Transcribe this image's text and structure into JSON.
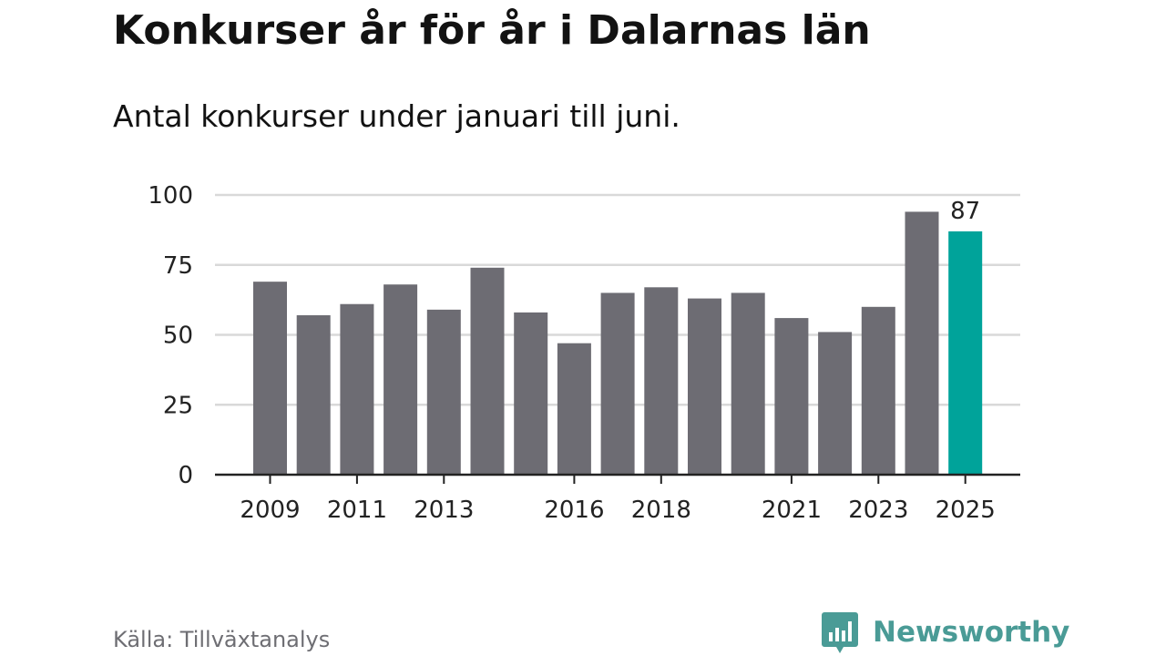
{
  "header": {
    "title": "Konkurser år för år i Dalarnas län",
    "subtitle": "Antal konkurser under januari till juni."
  },
  "footer": {
    "source": "Källa: Tillväxtanalys",
    "brand": "Newsworthy",
    "logo_icon": "bar-chart-speech-bubble-icon"
  },
  "colors": {
    "bar": "#6d6c73",
    "highlight": "#00a39a",
    "grid": "#d9d9d9",
    "axis": "#222222",
    "brand": "#4a9b96"
  },
  "chart_data": {
    "type": "bar",
    "title": "Konkurser år för år i Dalarnas län",
    "subtitle": "Antal konkurser under januari till juni.",
    "xlabel": "",
    "ylabel": "",
    "categories": [
      "2009",
      "2010",
      "2011",
      "2012",
      "2013",
      "2014",
      "2015",
      "2016",
      "2017",
      "2018",
      "2019",
      "2020",
      "2021",
      "2022",
      "2023",
      "2024",
      "2025"
    ],
    "values": [
      69,
      57,
      61,
      68,
      59,
      74,
      58,
      47,
      65,
      67,
      63,
      65,
      56,
      51,
      60,
      94,
      87
    ],
    "x_tick_labels": [
      "2009",
      "2011",
      "2013",
      "2016",
      "2018",
      "2021",
      "2023",
      "2025"
    ],
    "y_ticks": [
      "0",
      "25",
      "50",
      "75",
      "100"
    ],
    "ylim": [
      0,
      100
    ],
    "grid": true,
    "highlight_index": 16,
    "data_labels": [
      {
        "index": 16,
        "text": "87"
      }
    ]
  }
}
